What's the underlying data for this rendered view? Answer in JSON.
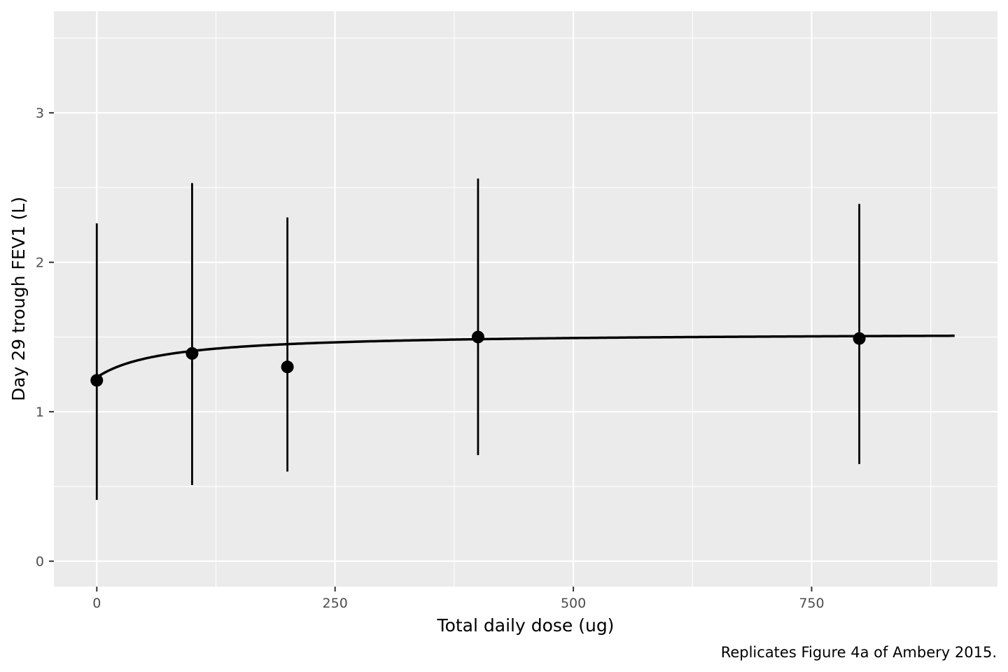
{
  "chart_data": {
    "type": "scatter",
    "xlabel": "Total daily dose (ug)",
    "ylabel": "Day 29 trough FEV1 (L)",
    "caption": "Replicates Figure 4a of Ambery 2015.",
    "xlim": [
      -45,
      945
    ],
    "ylim": [
      -0.17,
      3.68
    ],
    "x_ticks": [
      0,
      250,
      500,
      750
    ],
    "x_tick_labels": [
      "0",
      "250",
      "500",
      "750"
    ],
    "x_minor_ticks": [
      125,
      375,
      625,
      875
    ],
    "y_ticks": [
      0,
      1,
      2,
      3
    ],
    "y_tick_labels": [
      "0",
      "1",
      "2",
      "3"
    ],
    "y_minor_ticks": [
      0.5,
      1.5,
      2.5,
      3.5
    ],
    "grid": true,
    "colors": {
      "panel_background": "#ebebeb",
      "grid": "#ffffff",
      "marks": "#000000",
      "tick_label": "#4d4d4d",
      "tick_mark": "#333333"
    },
    "points": [
      {
        "x": 0,
        "y": 1.21,
        "ymin": 0.41,
        "ymax": 2.26
      },
      {
        "x": 100,
        "y": 1.39,
        "ymin": 0.51,
        "ymax": 2.53
      },
      {
        "x": 200,
        "y": 1.3,
        "ymin": 0.6,
        "ymax": 2.3
      },
      {
        "x": 400,
        "y": 1.5,
        "ymin": 0.71,
        "ymax": 2.56
      },
      {
        "x": 800,
        "y": 1.49,
        "ymin": 0.65,
        "ymax": 2.39
      }
    ],
    "fit_curve": {
      "model": "Emax",
      "e0": 1.23,
      "emax": 0.3,
      "ed50": 70,
      "x_range": [
        0,
        900
      ]
    }
  }
}
